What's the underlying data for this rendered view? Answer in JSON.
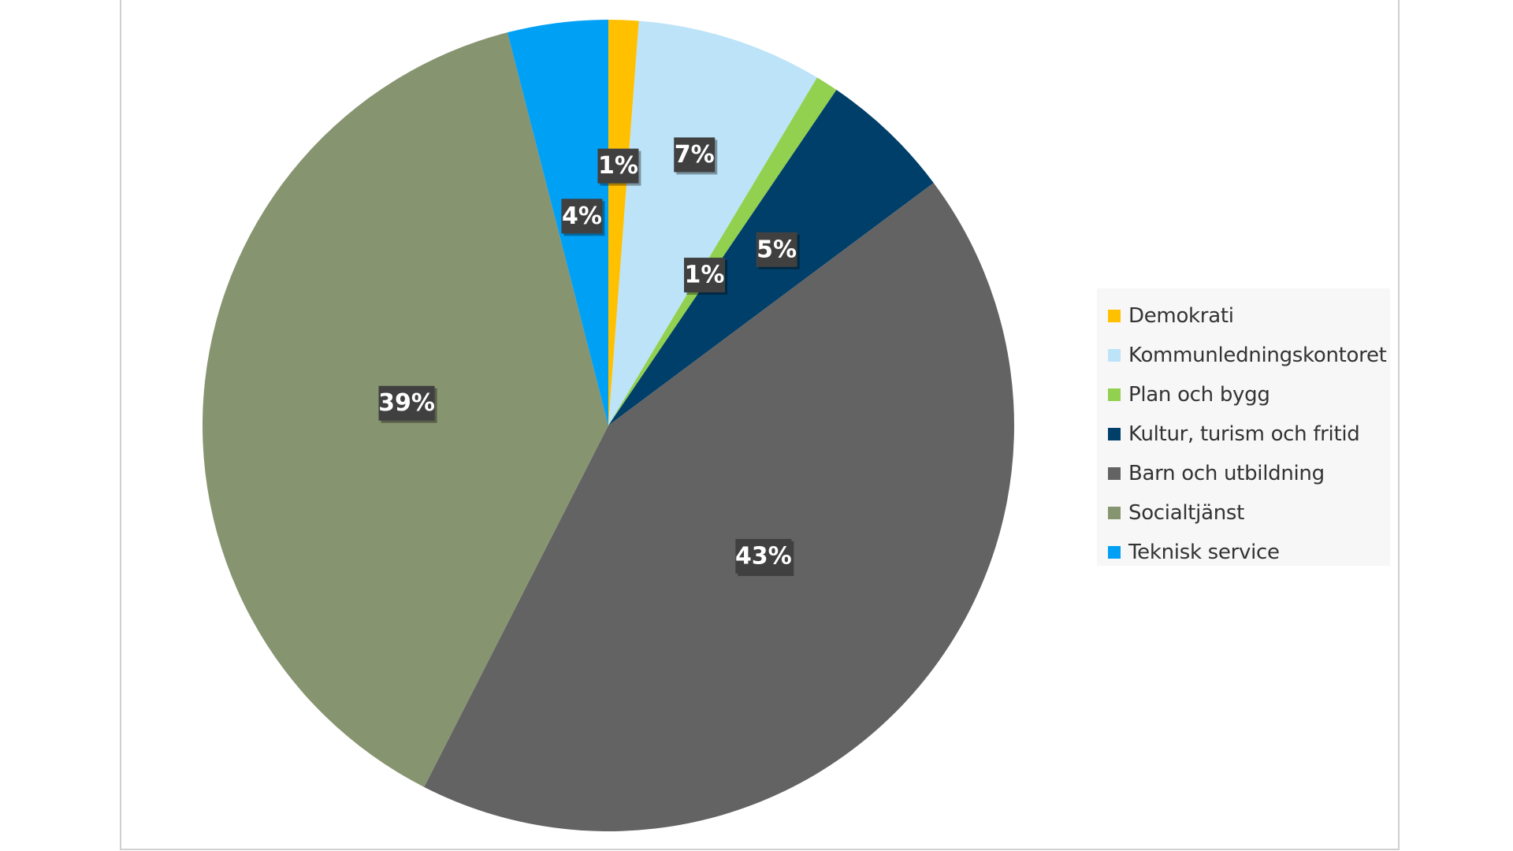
{
  "chart_data": {
    "type": "pie",
    "slices": [
      {
        "name": "Demokrati",
        "value": 1.2,
        "label": "1%",
        "color": "#FFC000"
      },
      {
        "name": "Kommunledningskontoret",
        "value": 7.4,
        "label": "7%",
        "color": "#BDE3F8"
      },
      {
        "name": "Plan och bygg",
        "value": 0.9,
        "label": "1%",
        "color": "#92D050"
      },
      {
        "name": "Kultur, turism och fritid",
        "value": 5.3,
        "label": "5%",
        "color": "#003F69"
      },
      {
        "name": "Barn och utbildning",
        "value": 42.7,
        "label": "43%",
        "color": "#636363"
      },
      {
        "name": "Socialtjänst",
        "value": 38.5,
        "label": "39%",
        "color": "#879470"
      },
      {
        "name": "Teknisk service",
        "value": 4.0,
        "label": "4%",
        "color": "#00A0F5"
      }
    ],
    "legend_position": "right"
  }
}
